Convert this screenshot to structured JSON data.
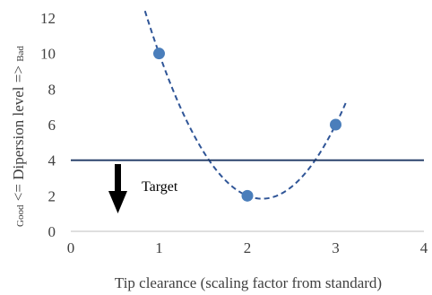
{
  "chart_data": {
    "type": "scatter",
    "xlabel": "Tip clearance (scaling factor from standard)",
    "ylabel": {
      "left": "Good",
      "middle": " <= Dipersion level => ",
      "right": "Bad"
    },
    "xlim": [
      0,
      4
    ],
    "ylim": [
      0,
      12
    ],
    "x_ticks": [
      "0",
      "1",
      "2",
      "3",
      "4"
    ],
    "y_ticks": [
      "0",
      "2",
      "4",
      "6",
      "8",
      "10",
      "12"
    ],
    "grid": false,
    "points": [
      {
        "x": 1,
        "y": 10
      },
      {
        "x": 2,
        "y": 2
      },
      {
        "x": 3,
        "y": 6
      }
    ],
    "trendline": {
      "type": "polynomial-2",
      "x_range": [
        0.84,
        3.12
      ],
      "style": "dashed"
    },
    "target_line": {
      "y": 4
    },
    "annotation": {
      "text": "Target",
      "arrow": "down"
    },
    "colors": {
      "points": "#4a7ebb",
      "trendline": "#2f5597",
      "target_line": "#1f3864",
      "arrow": "#000000",
      "axis": "#bfbfbf",
      "text": "#404040"
    }
  }
}
